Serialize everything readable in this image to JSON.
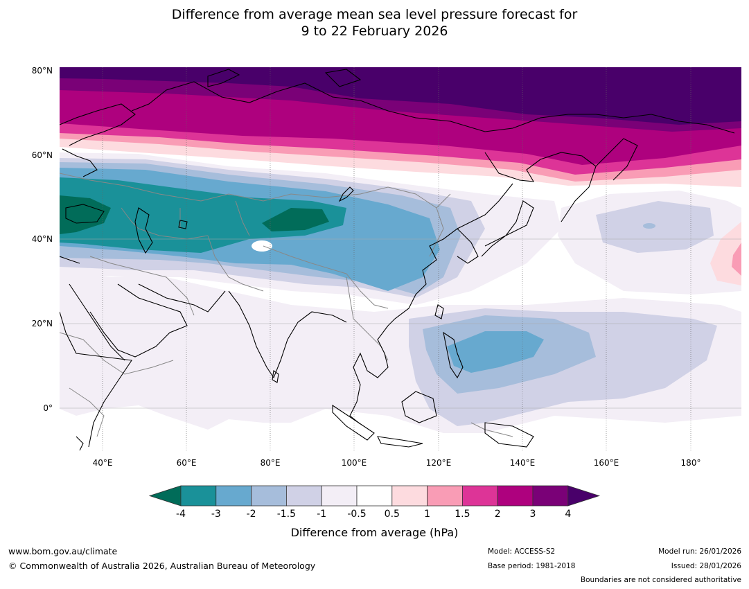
{
  "title": {
    "line1": "Difference from average mean sea level pressure forecast for",
    "line2": "9 to 22 February 2026"
  },
  "map": {
    "lat_labels": [
      "80°N",
      "60°N",
      "40°N",
      "20°N",
      "0°"
    ],
    "lon_labels": [
      "40°E",
      "60°E",
      "80°E",
      "100°E",
      "120°E",
      "140°E",
      "160°E",
      "180°"
    ],
    "extent": {
      "lon": [
        30,
        192
      ],
      "lat": [
        -10,
        81
      ]
    }
  },
  "colorbar": {
    "title": "Difference from average (hPa)",
    "tick_labels": [
      "-4",
      "-3",
      "-2",
      "-1.5",
      "-1",
      "-0.5",
      "0.5",
      "1",
      "1.5",
      "2",
      "3",
      "4"
    ],
    "colors": {
      "below_min": "#016c59",
      "bins": [
        "#1a9199",
        "#67a9cf",
        "#a6bddb",
        "#d0d1e6",
        "#f3eef6",
        "#ffffff",
        "#fddbdf",
        "#f99cb5",
        "#dd3497",
        "#ae017e",
        "#7a0177"
      ],
      "above_max": "#49006a"
    }
  },
  "footer": {
    "website": "www.bom.gov.au/climate",
    "copyright": "© Commonwealth of Australia 2026, Australian Bureau of Meteorology",
    "model": "Model: ACCESS-S2",
    "base_period": "Base period: 1981-2018",
    "model_run": "Model run: 26/01/2026",
    "issued": "Issued: 28/01/2026",
    "disclaimer": "Boundaries are not considered authoritative"
  }
}
